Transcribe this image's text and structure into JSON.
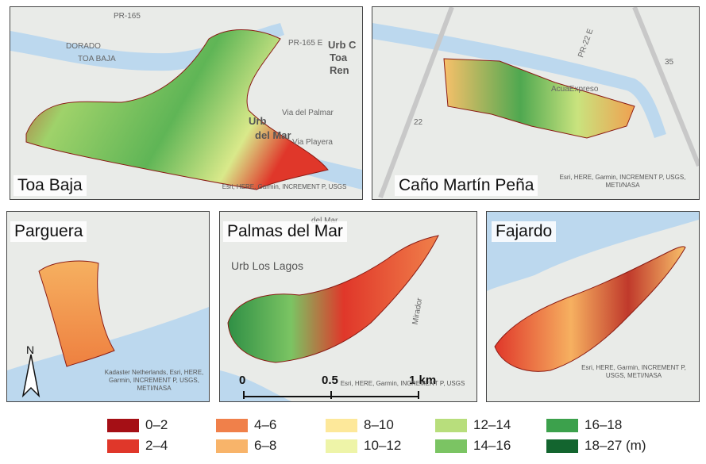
{
  "panels": [
    {
      "title": "Toa Baja",
      "labels": [
        "PR-165",
        "DORADO",
        "TOA BAJA",
        "PR-165 E",
        "Urb C",
        "Toa",
        "Ren",
        "Via del Palmar",
        "Urb",
        "del Mar",
        "Via Playera"
      ],
      "attribution": "Esri, HERE, Garmin, INCREMENT P, USGS"
    },
    {
      "title": "Caño Martín Peña",
      "labels": [
        "AcuaExpreso",
        "PR-22 E",
        "35",
        "22"
      ],
      "attribution": "Esri, HERE, Garmin, INCREMENT P, USGS, METI/NASA"
    },
    {
      "title": "Parguera",
      "labels": [
        "N"
      ],
      "attribution": "Kadaster Netherlands, Esri, HERE, Garmin, INCREMENT P, USGS, METI/NASA"
    },
    {
      "title": "Palmas del Mar",
      "labels": [
        "del Mar",
        "Urb Los Lagos",
        "Mirador"
      ],
      "attribution": "Esri, HERE, Garmin, INCREMENT P, USGS",
      "scale": [
        "0",
        "0.5",
        "1 km"
      ]
    },
    {
      "title": "Fajardo",
      "labels": [],
      "attribution": "Esri, HERE, Garmin, INCREMENT P, USGS, METI/NASA"
    }
  ],
  "legend": [
    {
      "label": "0–2",
      "color": "#a50f15"
    },
    {
      "label": "2–4",
      "color": "#e0372a"
    },
    {
      "label": "4–6",
      "color": "#f0804a"
    },
    {
      "label": "6–8",
      "color": "#f8b46a"
    },
    {
      "label": "8–10",
      "color": "#fde89a"
    },
    {
      "label": "10–12",
      "color": "#eef4a8"
    },
    {
      "label": "12–14",
      "color": "#b8de7c"
    },
    {
      "label": "14–16",
      "color": "#7bc463"
    },
    {
      "label": "16–18",
      "color": "#3ca14c"
    },
    {
      "label": "18–27 (m)",
      "color": "#13652f"
    }
  ]
}
